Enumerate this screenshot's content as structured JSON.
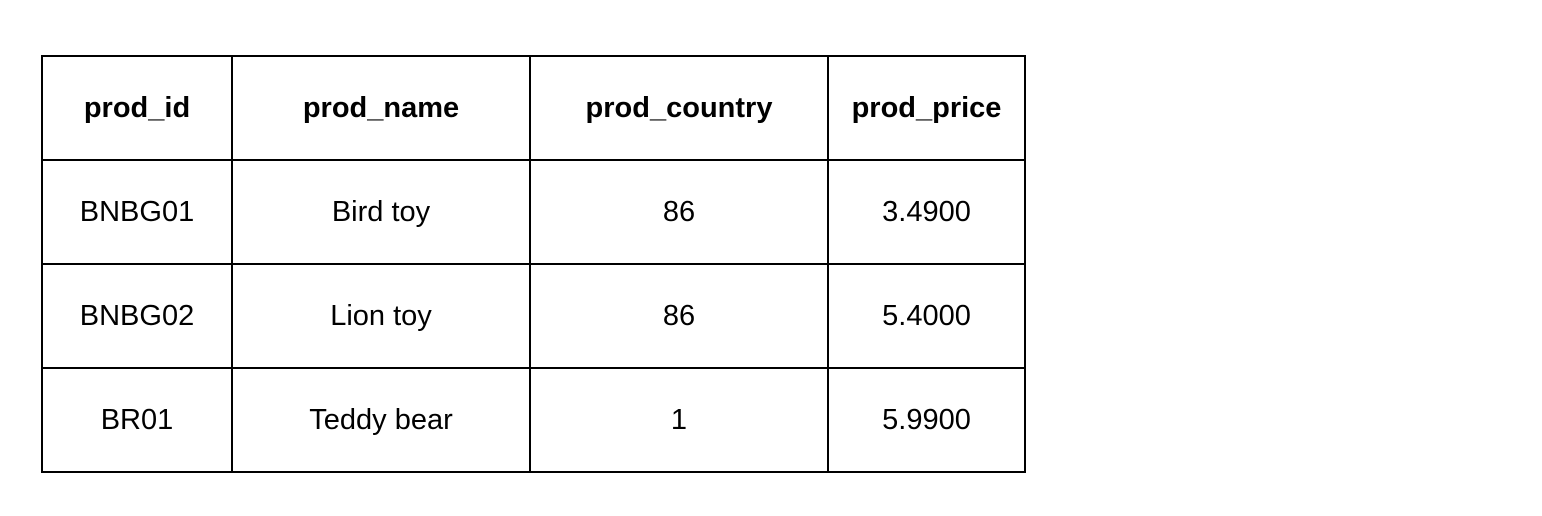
{
  "table": {
    "headers": [
      "prod_id",
      "prod_name",
      "prod_country",
      "prod_price"
    ],
    "rows": [
      [
        "BNBG01",
        "Bird toy",
        "86",
        "3.4900"
      ],
      [
        "BNBG02",
        "Lion toy",
        "86",
        "5.4000"
      ],
      [
        "BR01",
        "Teddy bear",
        "1",
        "5.9900"
      ]
    ]
  }
}
